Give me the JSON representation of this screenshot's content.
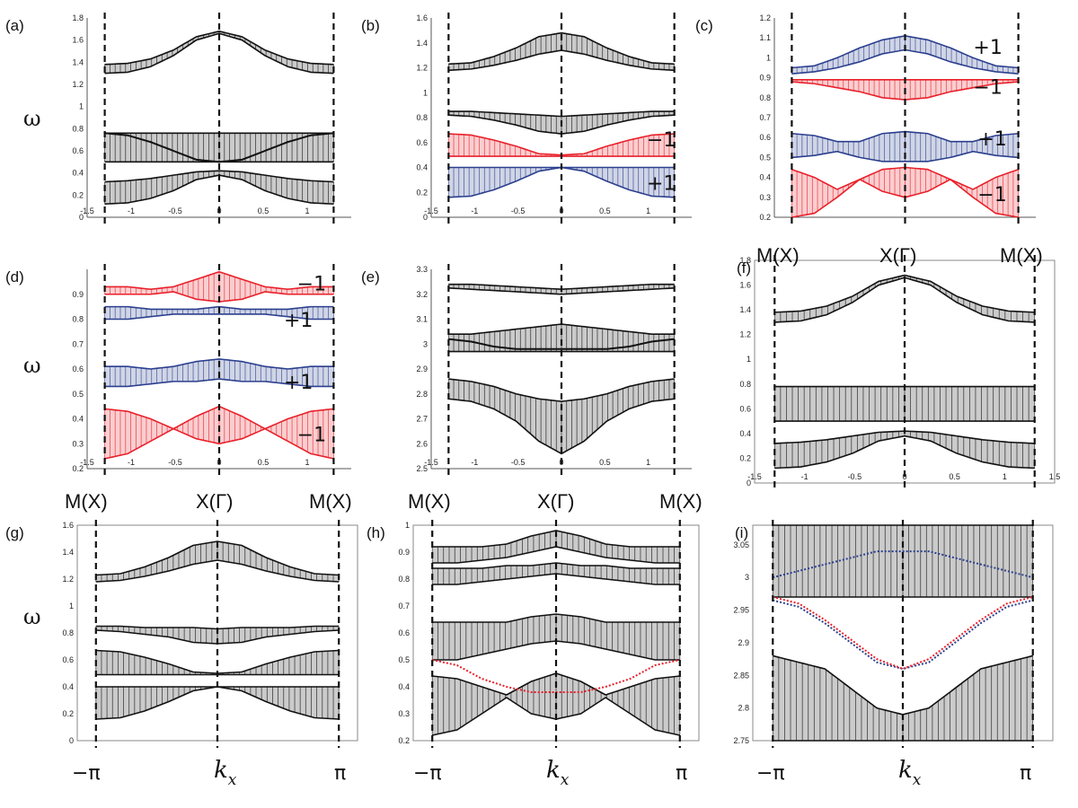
{
  "figure": {
    "y_symbol": "ω",
    "x_symbol": "k",
    "x_symbol_sub": "x",
    "x_minus_pi": "−π",
    "x_pi": "π",
    "sym_labels": [
      "M(X)",
      "X(Γ)",
      "M(X)"
    ]
  },
  "colors": {
    "black": "#111111",
    "red": "#e8202a",
    "blue": "#2b3f8e",
    "frame": "#8a8a8a"
  },
  "chart_data": [
    {
      "id": "a",
      "label": "(a)",
      "type": "line",
      "title": "",
      "xlabel": "",
      "ylabel": "ω",
      "xlim": [
        -1.5,
        1.5
      ],
      "ylim": [
        0,
        1.8
      ],
      "xticks": [
        "-1.5",
        "-1",
        "-0.5",
        "0",
        "0.5",
        "1"
      ],
      "yticks": [
        "0",
        "0.2",
        "0.4",
        "0.6",
        "0.8",
        "1",
        "1.2",
        "1.4",
        "1.6",
        "1.8"
      ],
      "bands": [
        {
          "color": "black",
          "lo": [
            1.3,
            1.31,
            1.36,
            1.46,
            1.6,
            1.66
          ],
          "hi": [
            1.38,
            1.39,
            1.43,
            1.51,
            1.63,
            1.68
          ]
        },
        {
          "color": "black",
          "lo": [
            0.5,
            0.5,
            0.5,
            0.5,
            0.5,
            0.5
          ],
          "hi": [
            0.76,
            0.76,
            0.76,
            0.76,
            0.76,
            0.76
          ]
        },
        {
          "color": "black",
          "lo": [
            0.12,
            0.13,
            0.17,
            0.24,
            0.34,
            0.38
          ],
          "hi": [
            0.32,
            0.33,
            0.35,
            0.38,
            0.41,
            0.42
          ]
        }
      ],
      "lines": [
        {
          "color": "black",
          "y": [
            0.76,
            0.74,
            0.68,
            0.6,
            0.52,
            0.5
          ]
        }
      ],
      "annotations": []
    },
    {
      "id": "b",
      "label": "(b)",
      "type": "line",
      "title": "",
      "xlabel": "",
      "ylabel": "",
      "xlim": [
        -1.5,
        1.5
      ],
      "ylim": [
        0,
        1.6
      ],
      "xticks": [
        "-1.5",
        "-1",
        "-0.5",
        "0",
        "0.5",
        "1"
      ],
      "yticks": [
        "0",
        "0.2",
        "0.4",
        "0.6",
        "0.8",
        "1",
        "1.2",
        "1.4",
        "1.6"
      ],
      "bands": [
        {
          "color": "black",
          "lo": [
            1.18,
            1.19,
            1.22,
            1.26,
            1.31,
            1.34
          ],
          "hi": [
            1.23,
            1.24,
            1.29,
            1.36,
            1.45,
            1.48
          ]
        },
        {
          "color": "black",
          "lo": [
            0.82,
            0.81,
            0.78,
            0.74,
            0.69,
            0.67
          ],
          "hi": [
            0.85,
            0.85,
            0.84,
            0.83,
            0.82,
            0.81
          ]
        },
        {
          "color": "red",
          "lo": [
            0.49,
            0.49,
            0.49,
            0.49,
            0.49,
            0.49
          ],
          "hi": [
            0.67,
            0.66,
            0.62,
            0.57,
            0.51,
            0.5
          ]
        },
        {
          "color": "blue",
          "lo": [
            0.16,
            0.17,
            0.22,
            0.29,
            0.37,
            0.4
          ],
          "hi": [
            0.4,
            0.4,
            0.4,
            0.4,
            0.4,
            0.4
          ]
        }
      ],
      "lines": [],
      "annotations": [
        {
          "text": "−1",
          "x": 1.15,
          "y": 0.57
        },
        {
          "text": "+1",
          "x": 1.15,
          "y": 0.22
        }
      ]
    },
    {
      "id": "c",
      "label": "(c)",
      "type": "line",
      "title": "",
      "xlabel": "",
      "ylabel": "",
      "xlim": [
        -1.5,
        1.5
      ],
      "ylim": [
        0.2,
        1.2
      ],
      "xticks": [],
      "yticks": [
        "0.2",
        "0.3",
        "0.4",
        "0.5",
        "0.6",
        "0.7",
        "0.8",
        "0.9",
        "1",
        "1.1",
        "1.2"
      ],
      "bands": [
        {
          "color": "blue",
          "lo": [
            0.92,
            0.93,
            0.95,
            0.98,
            1.02,
            1.04
          ],
          "hi": [
            0.95,
            0.96,
            1.0,
            1.05,
            1.09,
            1.11
          ]
        },
        {
          "color": "red",
          "lo": [
            0.88,
            0.87,
            0.85,
            0.83,
            0.8,
            0.79
          ],
          "hi": [
            0.89,
            0.89,
            0.89,
            0.89,
            0.89,
            0.89
          ]
        },
        {
          "color": "blue",
          "lo": [
            0.5,
            0.51,
            0.53,
            0.5,
            0.48,
            0.48
          ],
          "hi": [
            0.62,
            0.61,
            0.58,
            0.58,
            0.62,
            0.63
          ]
        },
        {
          "color": "red",
          "lo": [
            0.2,
            0.22,
            0.3,
            0.39,
            0.33,
            0.3
          ],
          "hi": [
            0.44,
            0.4,
            0.34,
            0.39,
            0.44,
            0.45
          ]
        }
      ],
      "lines": [],
      "annotations": [
        {
          "text": "+1",
          "x": 0.95,
          "y": 1.02
        },
        {
          "text": "−1",
          "x": 0.95,
          "y": 0.82
        },
        {
          "text": "+1",
          "x": 1.0,
          "y": 0.56
        },
        {
          "text": "−1",
          "x": 1.0,
          "y": 0.28
        }
      ]
    },
    {
      "id": "d",
      "label": "(d)",
      "type": "line",
      "title": "",
      "xlabel": "",
      "ylabel": "ω",
      "xlim": [
        -1.5,
        1.5
      ],
      "ylim": [
        0.2,
        1.0
      ],
      "xticks": [
        "-1.5",
        "-1",
        "-0.5",
        "0",
        "0.5",
        "1"
      ],
      "yticks": [
        "0.2",
        "0.3",
        "0.4",
        "0.5",
        "0.6",
        "0.7",
        "0.8",
        "0.9"
      ],
      "bands": [
        {
          "color": "red",
          "lo": [
            0.9,
            0.9,
            0.9,
            0.91,
            0.88,
            0.87
          ],
          "hi": [
            0.93,
            0.93,
            0.92,
            0.93,
            0.96,
            0.99
          ]
        },
        {
          "color": "blue",
          "lo": [
            0.8,
            0.8,
            0.81,
            0.82,
            0.82,
            0.82
          ],
          "hi": [
            0.85,
            0.85,
            0.84,
            0.84,
            0.84,
            0.85
          ]
        },
        {
          "color": "blue",
          "lo": [
            0.53,
            0.53,
            0.54,
            0.55,
            0.55,
            0.56
          ],
          "hi": [
            0.61,
            0.61,
            0.6,
            0.61,
            0.63,
            0.64
          ]
        },
        {
          "color": "red",
          "lo": [
            0.24,
            0.26,
            0.31,
            0.36,
            0.32,
            0.3
          ],
          "hi": [
            0.44,
            0.43,
            0.4,
            0.36,
            0.41,
            0.45
          ]
        }
      ],
      "lines": [],
      "annotations": [
        {
          "text": "−1",
          "x": 1.05,
          "y": 0.915
        },
        {
          "text": "+1",
          "x": 0.9,
          "y": 0.77
        },
        {
          "text": "+1",
          "x": 0.9,
          "y": 0.52
        },
        {
          "text": "−1",
          "x": 1.05,
          "y": 0.31
        }
      ]
    },
    {
      "id": "e",
      "label": "(e)",
      "type": "line",
      "title": "",
      "xlabel": "",
      "ylabel": "",
      "xlim": [
        -1.5,
        1.5
      ],
      "ylim": [
        2.5,
        3.3
      ],
      "xticks": [
        "-1.5",
        "-1",
        "-0.5",
        "0",
        "0.5",
        "1"
      ],
      "yticks": [
        "2.5",
        "2.6",
        "2.7",
        "2.8",
        "2.9",
        "3",
        "3.1",
        "3.2",
        "3.3"
      ],
      "bands": [
        {
          "color": "black",
          "lo": [
            3.225,
            3.22,
            3.215,
            3.21,
            3.205,
            3.2
          ],
          "hi": [
            3.24,
            3.24,
            3.235,
            3.23,
            3.225,
            3.22
          ]
        },
        {
          "color": "black",
          "lo": [
            2.97,
            2.97,
            2.97,
            2.97,
            2.97,
            2.97
          ],
          "hi": [
            3.04,
            3.04,
            3.05,
            3.06,
            3.07,
            3.08
          ]
        },
        {
          "color": "black",
          "lo": [
            2.78,
            2.77,
            2.74,
            2.69,
            2.61,
            2.56
          ],
          "hi": [
            2.86,
            2.85,
            2.83,
            2.8,
            2.78,
            2.77
          ]
        }
      ],
      "lines": [
        {
          "color": "black",
          "y": [
            3.02,
            3.01,
            2.99,
            2.98,
            2.98,
            2.98
          ]
        }
      ],
      "annotations": []
    },
    {
      "id": "f",
      "label": "(f)",
      "type": "line",
      "title": "",
      "xlabel": "",
      "ylabel": "",
      "xlim": [
        -1.5,
        1.5
      ],
      "ylim": [
        0,
        1.8
      ],
      "xticks": [
        "-1.5",
        "-1",
        "-0.5",
        "0",
        "0.5",
        "1",
        "1.5"
      ],
      "yticks": [
        "0",
        "0.2",
        "0.4",
        "0.6",
        "0.8",
        "1",
        "1.2",
        "1.4",
        "1.6",
        "1.8"
      ],
      "bands": [
        {
          "color": "black",
          "lo": [
            1.3,
            1.31,
            1.36,
            1.46,
            1.6,
            1.66
          ],
          "hi": [
            1.38,
            1.39,
            1.43,
            1.51,
            1.63,
            1.68
          ]
        },
        {
          "color": "black",
          "lo": [
            0.5,
            0.5,
            0.5,
            0.5,
            0.5,
            0.5
          ],
          "hi": [
            0.78,
            0.78,
            0.78,
            0.78,
            0.78,
            0.78
          ]
        },
        {
          "color": "black",
          "lo": [
            0.12,
            0.13,
            0.17,
            0.24,
            0.34,
            0.38
          ],
          "hi": [
            0.32,
            0.33,
            0.35,
            0.38,
            0.41,
            0.42
          ]
        }
      ],
      "lines": [],
      "annotations": []
    },
    {
      "id": "g",
      "label": "(g)",
      "type": "line",
      "title": "",
      "xlabel": "",
      "ylabel": "ω",
      "xlim": [
        -1.5,
        1.5
      ],
      "ylim": [
        0,
        1.6
      ],
      "xticks": [],
      "yticks": [
        "0",
        "0.2",
        "0.4",
        "0.6",
        "0.8",
        "1",
        "1.2",
        "1.4",
        "1.6"
      ],
      "bands": [
        {
          "color": "black",
          "lo": [
            1.18,
            1.19,
            1.22,
            1.26,
            1.31,
            1.34
          ],
          "hi": [
            1.23,
            1.24,
            1.29,
            1.36,
            1.45,
            1.48
          ]
        },
        {
          "color": "black",
          "lo": [
            0.82,
            0.81,
            0.79,
            0.77,
            0.73,
            0.72
          ],
          "hi": [
            0.85,
            0.85,
            0.84,
            0.84,
            0.84,
            0.83
          ]
        },
        {
          "color": "black",
          "lo": [
            0.49,
            0.49,
            0.49,
            0.49,
            0.49,
            0.49
          ],
          "hi": [
            0.67,
            0.66,
            0.62,
            0.57,
            0.51,
            0.5
          ]
        },
        {
          "color": "black",
          "lo": [
            0.16,
            0.17,
            0.22,
            0.29,
            0.37,
            0.4
          ],
          "hi": [
            0.4,
            0.4,
            0.4,
            0.4,
            0.4,
            0.4
          ]
        }
      ],
      "lines": [],
      "annotations": []
    },
    {
      "id": "h",
      "label": "(h)",
      "type": "line",
      "title": "",
      "xlabel": "",
      "ylabel": "",
      "xlim": [
        -1.5,
        1.5
      ],
      "ylim": [
        0.2,
        1.0
      ],
      "xticks": [],
      "yticks": [
        "0.2",
        "0.3",
        "0.4",
        "0.5",
        "0.6",
        "0.7",
        "0.8",
        "0.9",
        "1"
      ],
      "bands": [
        {
          "color": "black",
          "lo": [
            0.86,
            0.86,
            0.87,
            0.88,
            0.9,
            0.92
          ],
          "hi": [
            0.92,
            0.92,
            0.92,
            0.93,
            0.96,
            0.98
          ]
        },
        {
          "color": "black",
          "lo": [
            0.78,
            0.78,
            0.79,
            0.8,
            0.81,
            0.82
          ],
          "hi": [
            0.84,
            0.84,
            0.84,
            0.85,
            0.85,
            0.86
          ]
        },
        {
          "color": "black",
          "lo": [
            0.5,
            0.5,
            0.52,
            0.54,
            0.56,
            0.57
          ],
          "hi": [
            0.64,
            0.64,
            0.64,
            0.64,
            0.66,
            0.67
          ]
        },
        {
          "color": "black",
          "lo": [
            0.22,
            0.24,
            0.3,
            0.36,
            0.3,
            0.28
          ],
          "hi": [
            0.44,
            0.43,
            0.4,
            0.37,
            0.42,
            0.45
          ]
        }
      ],
      "lines": [
        {
          "color": "red",
          "y": [
            0.5,
            0.48,
            0.43,
            0.4,
            0.38,
            0.38
          ]
        }
      ],
      "annotations": []
    },
    {
      "id": "i",
      "label": "(i)",
      "type": "line",
      "title": "",
      "xlabel": "",
      "ylabel": "",
      "xlim": [
        -1.5,
        1.5
      ],
      "ylim": [
        2.75,
        3.08
      ],
      "xticks": [],
      "yticks": [
        "2.75",
        "2.8",
        "2.85",
        "2.9",
        "2.95",
        "3",
        "3.05"
      ],
      "bands": [
        {
          "color": "black",
          "lo": [
            2.97,
            2.97,
            2.97,
            2.97,
            2.97,
            2.97
          ],
          "hi": [
            3.08,
            3.08,
            3.08,
            3.08,
            3.08,
            3.08
          ]
        },
        {
          "color": "black",
          "lo": [
            2.75,
            2.75,
            2.75,
            2.75,
            2.75,
            2.75
          ],
          "hi": [
            2.88,
            2.87,
            2.86,
            2.83,
            2.8,
            2.79
          ]
        }
      ],
      "lines": [
        {
          "color": "blue",
          "y": [
            2.965,
            2.955,
            2.93,
            2.9,
            2.87,
            2.86
          ]
        },
        {
          "color": "red",
          "y": [
            2.97,
            2.96,
            2.935,
            2.905,
            2.875,
            2.86
          ]
        },
        {
          "color": "blue",
          "y": [
            3.0,
            3.01,
            3.02,
            3.03,
            3.04,
            3.04
          ]
        }
      ],
      "annotations": []
    }
  ]
}
